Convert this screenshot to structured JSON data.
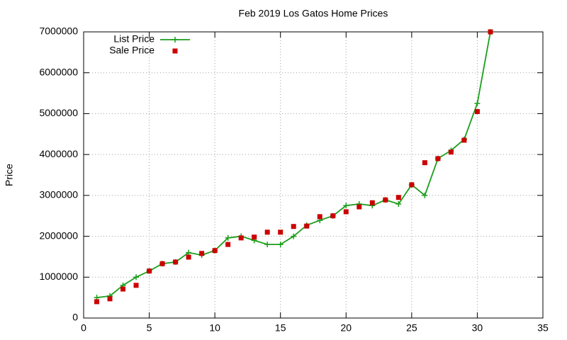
{
  "chart_data": {
    "type": "line",
    "title": "Feb 2019 Los Gatos Home Prices",
    "y_label": "Price",
    "x": [
      1,
      2,
      3,
      4,
      5,
      6,
      7,
      8,
      9,
      10,
      11,
      12,
      13,
      14,
      15,
      16,
      17,
      18,
      19,
      20,
      21,
      22,
      23,
      24,
      25,
      26,
      27,
      28,
      29,
      30,
      31
    ],
    "series": [
      {
        "name": "List Price",
        "color": "#1a9e1a",
        "mode": "lines+markers",
        "values": [
          500000,
          540000,
          800000,
          1000000,
          1150000,
          1330000,
          1370000,
          1600000,
          1540000,
          1650000,
          1960000,
          2000000,
          1900000,
          1800000,
          1800000,
          2000000,
          2270000,
          2390000,
          2500000,
          2750000,
          2790000,
          2750000,
          2890000,
          2790000,
          3260000,
          3000000,
          3900000,
          4100000,
          4370000,
          5250000,
          7000000
        ]
      },
      {
        "name": "Sale Price",
        "color": "#cc0000",
        "mode": "markers",
        "values": [
          400000,
          470000,
          710000,
          800000,
          1150000,
          1330000,
          1370000,
          1490000,
          1580000,
          1650000,
          1800000,
          1960000,
          1980000,
          2100000,
          2100000,
          2240000,
          2250000,
          2480000,
          2500000,
          2600000,
          2720000,
          2820000,
          2890000,
          2950000,
          3260000,
          3800000,
          3900000,
          4060000,
          4350000,
          5050000,
          7000000
        ]
      }
    ],
    "xlim": [
      0,
      35
    ],
    "xticks": [
      0,
      5,
      10,
      15,
      20,
      25,
      30,
      35
    ],
    "ylim": [
      0,
      7000000
    ],
    "yticks": [
      0,
      1000000,
      2000000,
      3000000,
      4000000,
      5000000,
      6000000,
      7000000
    ],
    "grid": true,
    "legend": "top-left"
  }
}
